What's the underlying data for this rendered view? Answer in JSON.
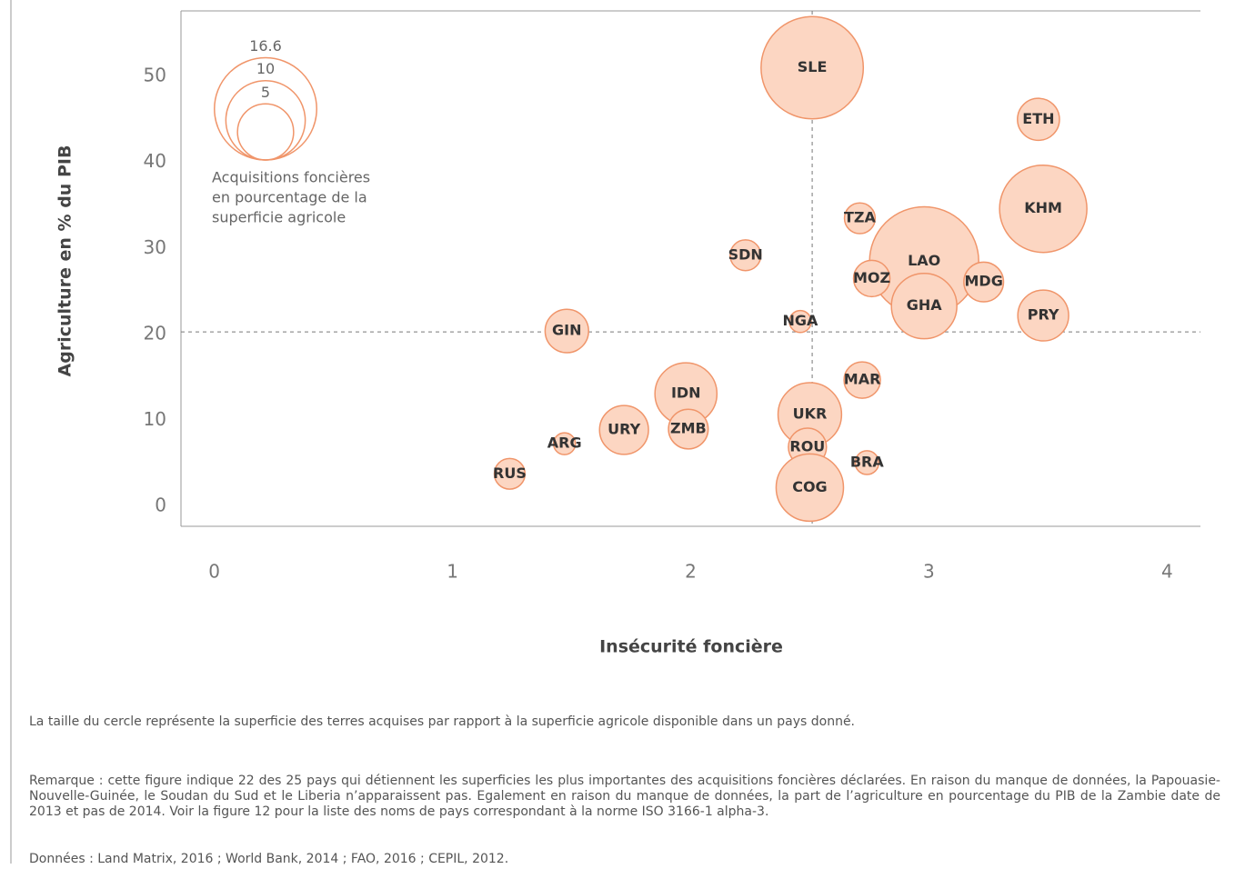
{
  "chart_data": {
    "type": "bubble",
    "x_label": "Insécurité foncière",
    "y_label": "Agriculture en % du PIB",
    "labels": [
      "SLE",
      "ETH",
      "KHM",
      "TZA",
      "SDN",
      "LAO",
      "MOZ",
      "MDG",
      "GHA",
      "PRY",
      "NGA",
      "GIN",
      "MAR",
      "IDN",
      "UKR",
      "URY",
      "ZMB",
      "ARG",
      "ROU",
      "BRA",
      "RUS",
      "COG"
    ],
    "x": [
      2.51,
      3.46,
      3.48,
      2.71,
      2.23,
      2.98,
      2.76,
      3.23,
      2.98,
      3.48,
      2.46,
      1.48,
      2.72,
      1.98,
      2.5,
      1.72,
      1.99,
      1.47,
      2.49,
      2.74,
      1.24,
      2.5
    ],
    "values": [
      51,
      45,
      34.6,
      33.5,
      29.2,
      28.5,
      26.5,
      26.1,
      23.3,
      22.2,
      21.5,
      20.4,
      14.7,
      13.1,
      10.7,
      8.9,
      9,
      7.3,
      6.9,
      5.1,
      3.8,
      2.2
    ],
    "sizes": [
      16.6,
      2.8,
      12.1,
      1.5,
      1.5,
      18.9,
      2.1,
      2.5,
      6.8,
      4.1,
      0.76,
      3,
      2.1,
      6.1,
      6.4,
      3.8,
      2.5,
      0.76,
      2.3,
      0.89,
      1.5,
      7.2
    ],
    "color": "#fcd6c2",
    "edge_color": "#f0956a",
    "xlim": [
      -0.14,
      4.14
    ],
    "xticks": [
      0,
      1,
      2,
      3,
      4
    ],
    "ylim": [
      -2.3,
      57.6
    ],
    "yticks": [
      0,
      10,
      20,
      30,
      40,
      50
    ],
    "reference_lines": {
      "x": 2.51,
      "y": 20.3
    },
    "size_legend": {
      "values": [
        16.6,
        10,
        5
      ],
      "text": [
        "Acquisitions foncières",
        "en pourcentage de la",
        "superficie agricole"
      ]
    },
    "caption": "La taille du cercle représente la superficie des terres acquises par rapport à la superficie agricole disponible dans un pays donné.",
    "note": "Remarque : cette figure indique 22 des 25 pays qui détiennent les superficies les plus importantes des acquisitions foncières déclarées. En raison du manque de données, la Papouasie-Nouvelle-Guinée, le Soudan du Sud et le Liberia n’apparaissent pas. Egalement en raison du manque de données, la part de l’agriculture en pourcentage du PIB de la Zambie date de 2013 et pas de 2014. Voir la figure 12 pour la liste des noms de pays correspondant à la norme ISO 3166-1 alpha-3.",
    "source": "Données : Land Matrix, 2016 ; World Bank, 2014 ; FAO, 2016 ; CEPIL, 2012."
  }
}
